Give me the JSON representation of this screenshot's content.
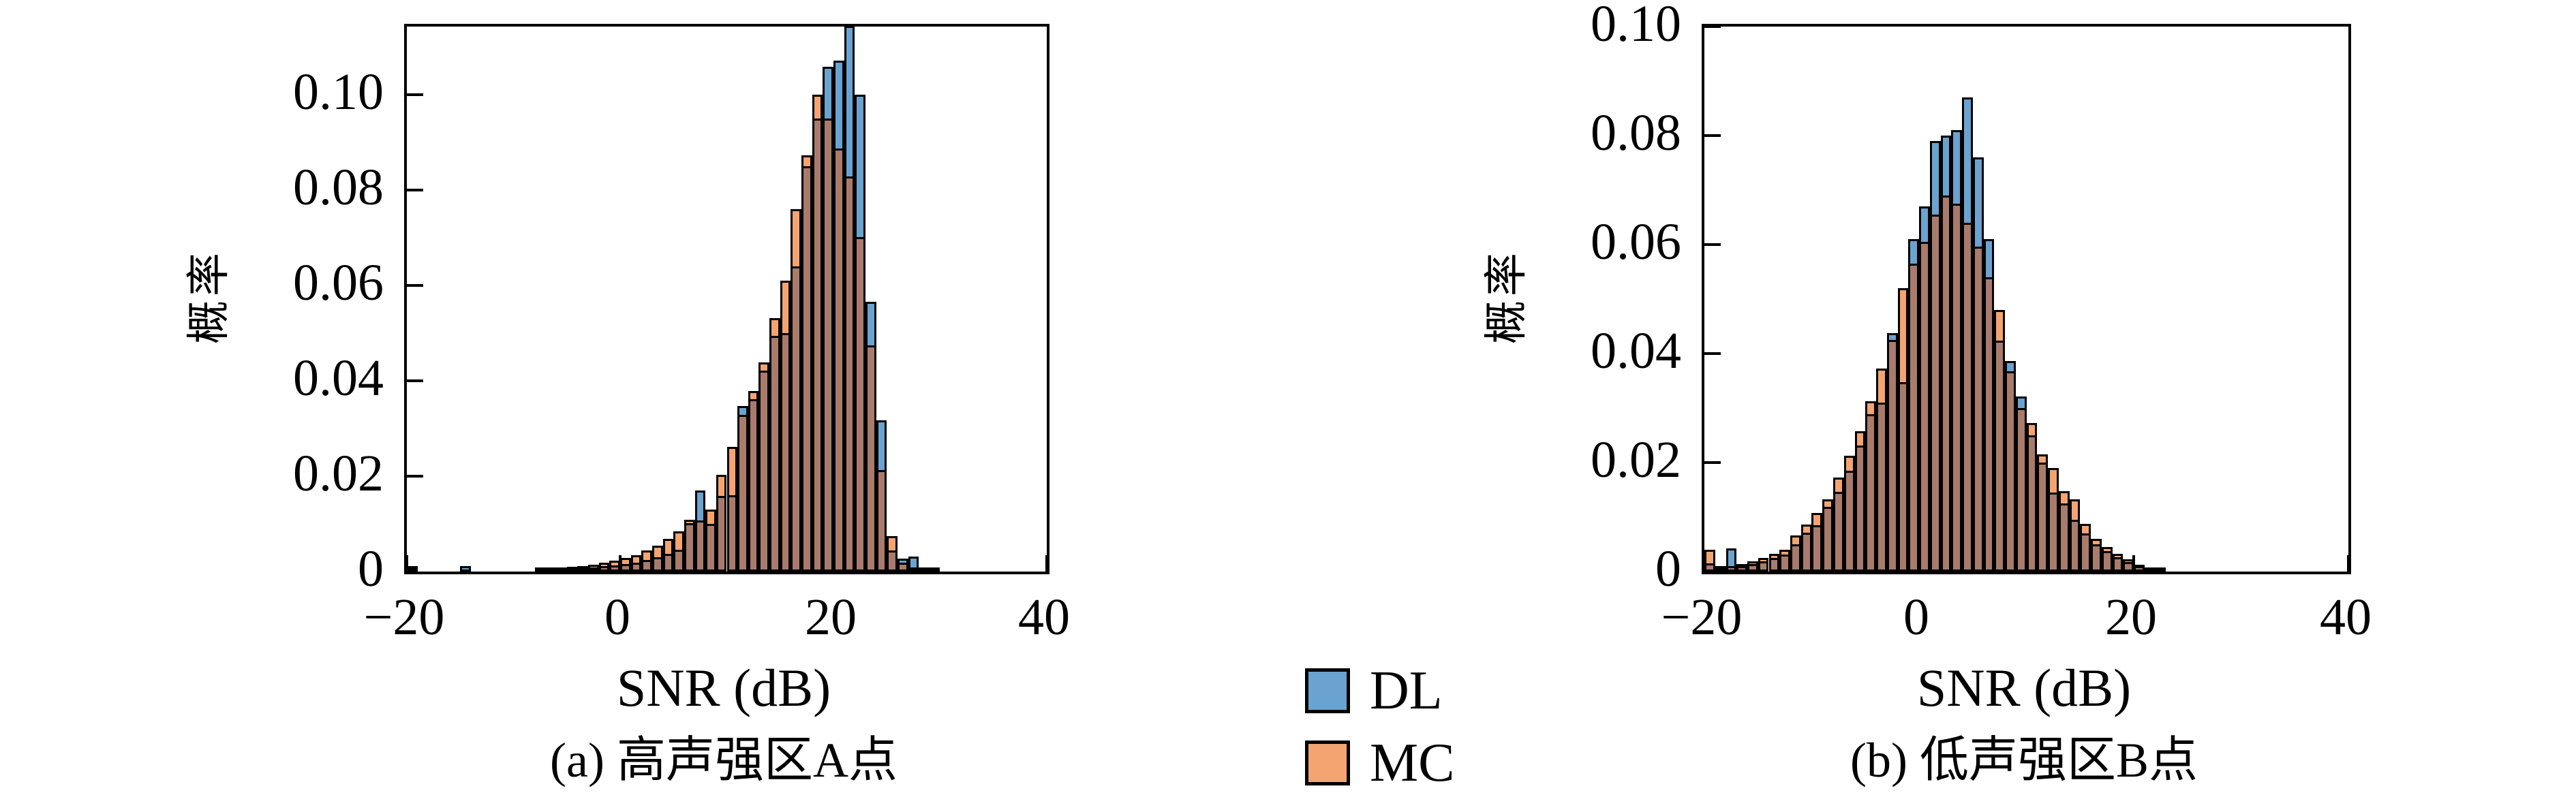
{
  "page": {
    "background": "#ffffff"
  },
  "legend": {
    "items": [
      {
        "label": "DL",
        "color": "#6BA3D0"
      },
      {
        "label": "MC",
        "color": "#F4A471"
      }
    ],
    "overlap_color": "#A97B6C",
    "edge_color": "#000000"
  },
  "chart_data": [
    {
      "type": "bar",
      "subtype": "overlaid-histogram",
      "caption": "(a) 高声强区A点",
      "xlabel": "SNR (dB)",
      "ylabel": "概率",
      "xlim": [
        -20,
        40
      ],
      "ylim": [
        0,
        0.1143
      ],
      "xticks": [
        -20,
        0,
        20,
        40
      ],
      "xtick_labels": [
        "−20",
        "0",
        "20",
        "40"
      ],
      "yticks": [
        0,
        0.02,
        0.04,
        0.06,
        0.08,
        0.1
      ],
      "ytick_labels": [
        "0",
        "0.02",
        "0.04",
        "0.06",
        "0.08",
        "0.10"
      ],
      "bin_width": 1,
      "bin_left_edges": [
        -20,
        -15,
        -8,
        -7,
        -6,
        -5,
        -4,
        -3,
        -2,
        -1,
        0,
        1,
        2,
        3,
        4,
        5,
        6,
        7,
        8,
        9,
        10,
        11,
        12,
        13,
        14,
        15,
        16,
        17,
        18,
        19,
        20,
        21,
        22,
        23,
        24,
        25,
        26,
        27,
        28,
        29
      ],
      "series": [
        {
          "name": "DL",
          "values": [
            0.0012,
            0.0012,
            0.0004,
            0.0005,
            0.0005,
            0.0006,
            0.0007,
            0.0009,
            0.0011,
            0.0013,
            0.0016,
            0.0019,
            0.0024,
            0.003,
            0.0037,
            0.0046,
            0.0102,
            0.017,
            0.01,
            0.0158,
            0.016,
            0.0347,
            0.0361,
            0.0422,
            0.0494,
            0.05,
            0.064,
            0.085,
            0.095,
            0.1059,
            0.1072,
            0.1145,
            0.1,
            0.0566,
            0.0317,
            0.0045,
            0.0027,
            0.0032,
            0.0009,
            0.0009
          ]
        },
        {
          "name": "MC",
          "values": [
            0.0006,
            0.0003,
            0.0005,
            0.0007,
            0.0009,
            0.001,
            0.0012,
            0.0015,
            0.0018,
            0.0023,
            0.0028,
            0.0035,
            0.0044,
            0.0055,
            0.0068,
            0.0085,
            0.0109,
            0.0107,
            0.013,
            0.0203,
            0.0262,
            0.0328,
            0.0379,
            0.0438,
            0.0532,
            0.061,
            0.076,
            0.0873,
            0.1,
            0.095,
            0.0887,
            0.0828,
            0.0701,
            0.0475,
            0.0213,
            0.0074,
            0.0018,
            0.0008,
            0.0004,
            0.0002
          ]
        }
      ],
      "note": "tallest DL bar is clipped by the top of the axes"
    },
    {
      "type": "bar",
      "subtype": "overlaid-histogram",
      "caption": "(b) 低声强区B点",
      "xlabel": "SNR (dB)",
      "ylabel": "概率",
      "xlim": [
        -20,
        40
      ],
      "ylim": [
        0,
        0.1
      ],
      "xticks": [
        -20,
        0,
        20,
        40
      ],
      "xtick_labels": [
        "−20",
        "0",
        "20",
        "40"
      ],
      "yticks": [
        0,
        0.02,
        0.04,
        0.06,
        0.08,
        0.1
      ],
      "ytick_labels": [
        "0",
        "0.02",
        "0.04",
        "0.06",
        "0.08",
        "0.10"
      ],
      "bin_width": 1,
      "bin_left_edges": [
        -20,
        -19,
        -18,
        -17,
        -16,
        -15,
        -14,
        -13,
        -12,
        -11,
        -10,
        -9,
        -8,
        -7,
        -6,
        -5,
        -4,
        -3,
        -2,
        -1,
        0,
        1,
        2,
        3,
        4,
        5,
        6,
        7,
        8,
        9,
        10,
        11,
        12,
        13,
        14,
        15,
        16,
        17,
        18,
        19,
        20,
        21,
        22
      ],
      "series": [
        {
          "name": "DL",
          "values": [
            0.0015,
            0.0008,
            0.0042,
            0.001,
            0.0014,
            0.0019,
            0.0025,
            0.0031,
            0.005,
            0.0071,
            0.0085,
            0.0119,
            0.0146,
            0.0185,
            0.0231,
            0.0289,
            0.031,
            0.0437,
            0.0347,
            0.061,
            0.067,
            0.079,
            0.08,
            0.081,
            0.087,
            0.076,
            0.061,
            0.0424,
            0.0386,
            0.0321,
            0.025,
            0.02,
            0.0145,
            0.0125,
            0.0095,
            0.007,
            0.005,
            0.0038,
            0.0026,
            0.0018,
            0.001,
            0.0006,
            0.0003
          ]
        },
        {
          "name": "MC",
          "values": [
            0.004,
            0.001,
            0.001,
            0.0014,
            0.0019,
            0.0025,
            0.0032,
            0.004,
            0.0066,
            0.0086,
            0.0108,
            0.0133,
            0.0173,
            0.0212,
            0.0258,
            0.0312,
            0.0373,
            0.0425,
            0.052,
            0.0565,
            0.0605,
            0.0655,
            0.069,
            0.0675,
            0.064,
            0.0596,
            0.054,
            0.048,
            0.0368,
            0.03,
            0.0272,
            0.0215,
            0.019,
            0.0148,
            0.0132,
            0.0088,
            0.006,
            0.0045,
            0.0032,
            0.0022,
            0.0013,
            0.0007,
            0.0003
          ]
        }
      ]
    }
  ]
}
